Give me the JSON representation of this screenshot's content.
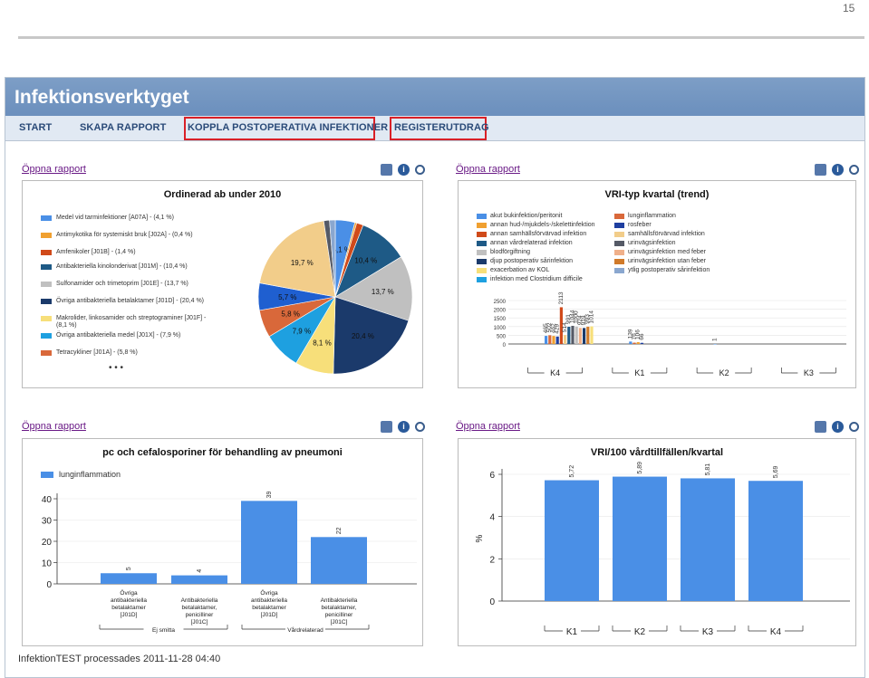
{
  "page_number": "15",
  "app": {
    "title": "Infektionsverktyget",
    "nav": [
      "START",
      "SKAPA RAPPORT",
      "KOPPLA POSTOPERATIVA INFEKTIONER",
      "REGISTERUTDRAG"
    ]
  },
  "open_report_label": "Öppna rapport",
  "footer": "InfektionTEST processades 2011-11-28 04:40",
  "colors": {
    "accent": "#6b8fbd",
    "bar": "#4a8fe6",
    "highlight": "#d92027"
  },
  "chart_data": [
    {
      "type": "pie",
      "title": "Ordinerad ab under 2010",
      "slices": [
        {
          "name": "Medel vid tarminfektioner [A07A] - (4,1 %)",
          "value": 4.1,
          "color": "#4a8fe6",
          "label": "4,1 %"
        },
        {
          "name": "Antimykotika för systemiskt bruk [J02A] - (0,4 %)",
          "value": 0.4,
          "color": "#f0a030",
          "label": ""
        },
        {
          "name": "Amfenikoler [J01B] - (1,4 %)",
          "value": 1.4,
          "color": "#d04a1a",
          "label": ""
        },
        {
          "name": "Antibakteriella kinolonderivat [J01M] - (10,4 %)",
          "value": 10.4,
          "color": "#1e5a86",
          "label": "10,4 %"
        },
        {
          "name": "Sulfonamider och trimetoprim [J01E] - (13,7 %)",
          "value": 13.7,
          "color": "#c0c0c0",
          "label": "13,7 %"
        },
        {
          "name": "Övriga antibakteriella betalaktamer [J01D] - (20,4 %)",
          "value": 20.4,
          "color": "#1b3a6b",
          "label": "20,4 %"
        },
        {
          "name": "Makrolider, linkosamider och streptograminer [J01F] - (8,1 %)",
          "value": 8.1,
          "color": "#f7df7a",
          "label": "8,1 %"
        },
        {
          "name": "Övriga antibakteriella medel [J01X] - (7,9 %)",
          "value": 7.9,
          "color": "#1ea0e0",
          "label": "7,9 %"
        },
        {
          "name": "Tetracykliner [J01A] - (5,8 %)",
          "value": 5.8,
          "color": "#d9683a",
          "label": "5,8 %"
        },
        {
          "name": "",
          "value": 5.7,
          "color": "#1f5fd0",
          "label": "5,7 %"
        },
        {
          "name": "",
          "value": 19.7,
          "color": "#f2cd8a",
          "label": "19,7 %"
        },
        {
          "name": "",
          "value": 1.2,
          "color": "#555a66",
          "label": ""
        },
        {
          "name": "",
          "value": 1.2,
          "color": "#8aa7cf",
          "label": ""
        }
      ],
      "legend_more": "• • •"
    },
    {
      "type": "bar",
      "title": "VRI-typ kvartal (trend)",
      "legend": [
        {
          "name": "akut bukinfektion/peritonit",
          "color": "#4a8fe6"
        },
        {
          "name": "lunginflammation",
          "color": "#d9683a"
        },
        {
          "name": "annan hud-/mjukdels-/skelettinfektion",
          "color": "#f0a030"
        },
        {
          "name": "rosfeber",
          "color": "#1f3fa0"
        },
        {
          "name": "annan samhällsförvärvad infektion",
          "color": "#d04a1a"
        },
        {
          "name": "samhällsförvärvad infektion",
          "color": "#f2cd8a"
        },
        {
          "name": "annan vårdrelaterad infektion",
          "color": "#1e5a86"
        },
        {
          "name": "urinvägsinfektion",
          "color": "#555a66"
        },
        {
          "name": "blodförgiftning",
          "color": "#c0c0c0"
        },
        {
          "name": "urinvägsinfektion med feber",
          "color": "#f0b08a"
        },
        {
          "name": "djup postoperativ sårinfektion",
          "color": "#1b3a6b"
        },
        {
          "name": "urinvägsinfektion utan feber",
          "color": "#d07a2a"
        },
        {
          "name": "exacerbation av KOL",
          "color": "#f7df7a"
        },
        {
          "name": "ytlig postoperativ sårinfektion",
          "color": "#8aa7cf"
        },
        {
          "name": "infektion med Clostridium difficile",
          "color": "#1ea0e0"
        }
      ],
      "categories": [
        "K4",
        "K1",
        "K2",
        "K3"
      ],
      "yticks": [
        "2500",
        "2000",
        "1500",
        "1000",
        "500",
        "0"
      ],
      "ylim": [
        0,
        2500
      ],
      "groups": [
        {
          "values": [
            465,
            502,
            462,
            429,
            2113,
            514,
            991,
            1044,
            1000,
            924,
            919,
            993,
            1014
          ],
          "labels": [
            "465",
            "502",
            "462",
            "429",
            "2113",
            "514",
            "991",
            "1044",
            "1000",
            "924",
            "919",
            "993",
            "1014"
          ]
        },
        {
          "values": [
            139,
            76,
            106,
            66
          ],
          "labels": [
            "139",
            "76",
            "106",
            "66"
          ]
        },
        {
          "values": [
            1
          ],
          "labels": [
            "1"
          ]
        },
        {
          "values": [],
          "labels": []
        }
      ]
    },
    {
      "type": "bar",
      "title": "pc och cefalosporiner för behandling av pneumoni",
      "series": [
        {
          "name": "lunginflammation",
          "color": "#4a8fe6"
        }
      ],
      "categories": [
        "Övriga antibakteriella betalaktamer [J01D]",
        "Antibakteriella betalaktamer, penicilliner [J01C]",
        "Övriga antibakteriella betalaktamer [J01D]",
        "Antibakteriella betalaktamer, penicilliner [J01C]"
      ],
      "values": [
        5,
        4,
        39,
        22
      ],
      "yticks": [
        "40",
        "30",
        "20",
        "10",
        "0"
      ],
      "ylim": [
        0,
        40
      ],
      "group_labels": [
        "Ej smitta",
        "Vårdrelaterad"
      ]
    },
    {
      "type": "bar",
      "title": "VRI/100 vårdtillfällen/kvartal",
      "categories": [
        "K1",
        "K2",
        "K3",
        "K4"
      ],
      "values": [
        5.72,
        5.89,
        5.81,
        5.69
      ],
      "labels": [
        "5,72",
        "5,89",
        "5,81",
        "5,69"
      ],
      "yticks": [
        "6",
        "4",
        "2",
        "0"
      ],
      "ylabel": "%",
      "ylim": [
        0,
        6
      ]
    }
  ]
}
